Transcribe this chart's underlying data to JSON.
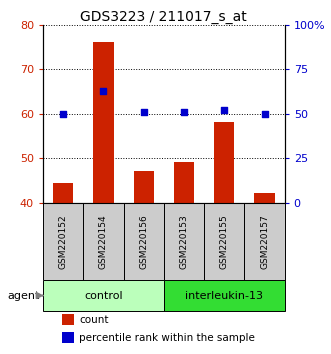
{
  "title": "GDS3223 / 211017_s_at",
  "samples": [
    "GSM220152",
    "GSM220154",
    "GSM220156",
    "GSM220153",
    "GSM220155",
    "GSM220157"
  ],
  "bar_values": [
    44.3,
    76.2,
    47.0,
    49.2,
    58.2,
    42.2
  ],
  "dot_values": [
    50.0,
    63.0,
    51.0,
    51.2,
    52.3,
    50.0
  ],
  "bar_color": "#cc2200",
  "dot_color": "#0000cc",
  "ylim_left": [
    40,
    80
  ],
  "ylim_right": [
    0,
    100
  ],
  "yticks_left": [
    40,
    50,
    60,
    70,
    80
  ],
  "ytick_labels_right": [
    "0",
    "25",
    "50",
    "75",
    "100%"
  ],
  "yticks_right": [
    0,
    25,
    50,
    75,
    100
  ],
  "groups": [
    {
      "label": "control",
      "start": 0,
      "end": 3,
      "color": "#bbffbb"
    },
    {
      "label": "interleukin-13",
      "start": 3,
      "end": 6,
      "color": "#33dd33"
    }
  ],
  "agent_label": "agent",
  "legend_bar_label": "count",
  "legend_dot_label": "percentile rank within the sample",
  "bar_bottom": 40,
  "figsize": [
    3.31,
    3.54
  ],
  "dpi": 100
}
